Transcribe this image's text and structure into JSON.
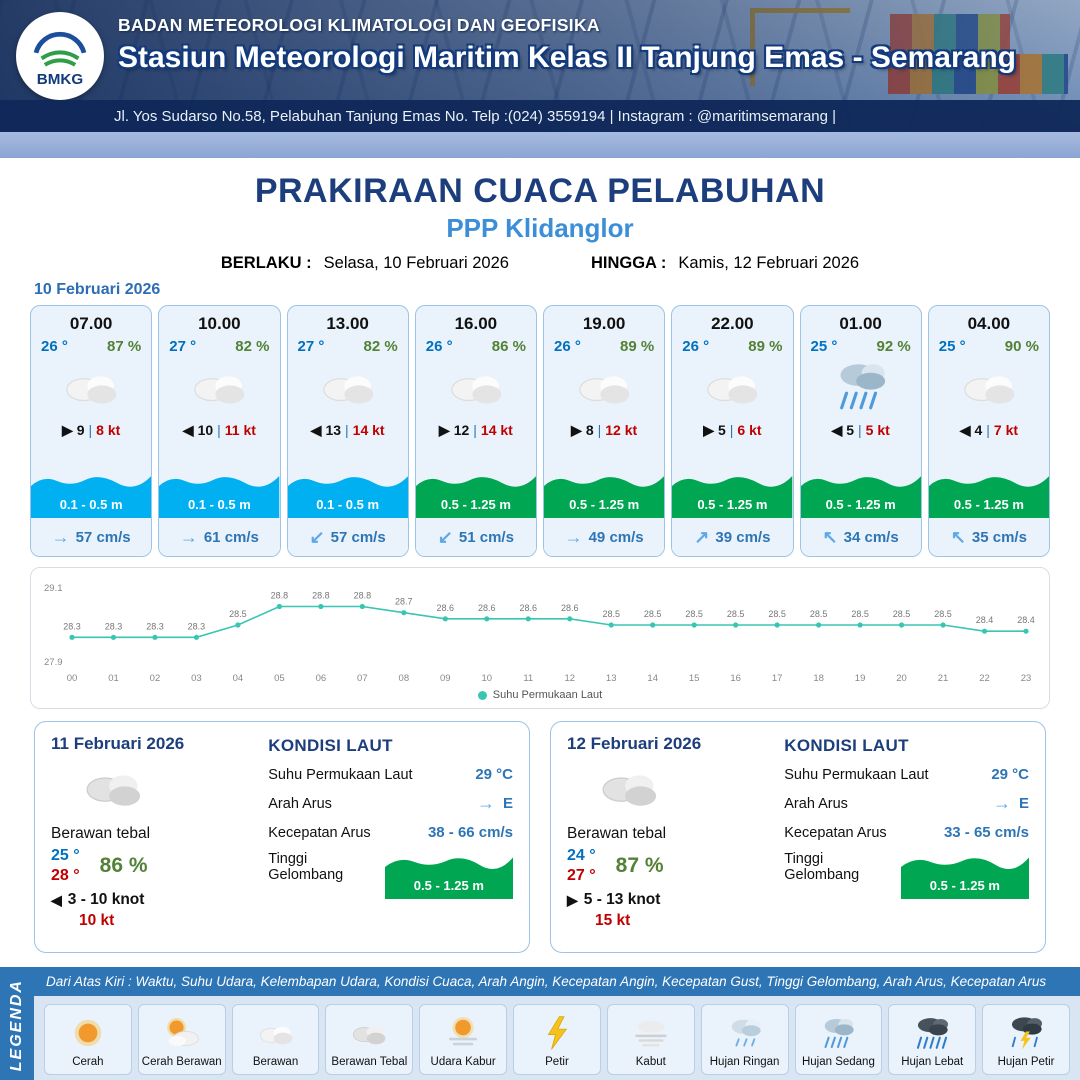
{
  "header": {
    "agency": "BADAN METEOROLOGI KLIMATOLOGI DAN GEOFISIKA",
    "station": "Stasiun Meteorologi Maritim Kelas II Tanjung Emas - Semarang",
    "address": "Jl. Yos Sudarso No.58, Pelabuhan Tanjung Emas No. Telp :(024) 3559194 | Instagram : @maritimsemarang |",
    "logo_label": "BMKG"
  },
  "title": {
    "main": "PRAKIRAAN CUACA PELABUHAN",
    "location": "PPP Klidanglor",
    "berlaku_label": "BERLAKU :",
    "berlaku_value": "Selasa, 10 Februari 2026",
    "hingga_label": "HINGGA :",
    "hingga_value": "Kamis, 12 Februari 2026"
  },
  "forecast_date": "10 Februari 2026",
  "labels": {
    "wind_sep": "|"
  },
  "forecast_cards": [
    {
      "time": "07.00",
      "temp": "26 °",
      "humidity": "87 %",
      "icon": "berawan",
      "wind_arrow": "▶",
      "wind_speed": "9",
      "gust": "8 kt",
      "wave": "0.1 - 0.5 m",
      "wave_color": "#00b0f0",
      "current_arrow": "→",
      "current": "57 cm/s"
    },
    {
      "time": "10.00",
      "temp": "27 °",
      "humidity": "82 %",
      "icon": "berawan",
      "wind_arrow": "◀",
      "wind_speed": "10",
      "gust": "11 kt",
      "wave": "0.1 - 0.5 m",
      "wave_color": "#00b0f0",
      "current_arrow": "→",
      "current": "61 cm/s"
    },
    {
      "time": "13.00",
      "temp": "27 °",
      "humidity": "82 %",
      "icon": "berawan",
      "wind_arrow": "◀",
      "wind_speed": "13",
      "gust": "14 kt",
      "wave": "0.1 - 0.5 m",
      "wave_color": "#00b0f0",
      "current_arrow": "↙",
      "current": "57 cm/s"
    },
    {
      "time": "16.00",
      "temp": "26 °",
      "humidity": "86 %",
      "icon": "berawan",
      "wind_arrow": "▶",
      "wind_speed": "12",
      "gust": "14 kt",
      "wave": "0.5 - 1.25 m",
      "wave_color": "#00a651",
      "current_arrow": "↙",
      "current": "51 cm/s"
    },
    {
      "time": "19.00",
      "temp": "26 °",
      "humidity": "89 %",
      "icon": "berawan",
      "wind_arrow": "▶",
      "wind_speed": "8",
      "gust": "12 kt",
      "wave": "0.5 - 1.25 m",
      "wave_color": "#00a651",
      "current_arrow": "→",
      "current": "49 cm/s"
    },
    {
      "time": "22.00",
      "temp": "26 °",
      "humidity": "89 %",
      "icon": "berawan",
      "wind_arrow": "▶",
      "wind_speed": "5",
      "gust": "6 kt",
      "wave": "0.5 - 1.25 m",
      "wave_color": "#00a651",
      "current_arrow": "↗",
      "current": "39 cm/s"
    },
    {
      "time": "01.00",
      "temp": "25 °",
      "humidity": "92 %",
      "icon": "hujan-sedang",
      "wind_arrow": "◀",
      "wind_speed": "5",
      "gust": "5 kt",
      "wave": "0.5 - 1.25 m",
      "wave_color": "#00a651",
      "current_arrow": "↖",
      "current": "34 cm/s"
    },
    {
      "time": "04.00",
      "temp": "25 °",
      "humidity": "90 %",
      "icon": "berawan",
      "wind_arrow": "◀",
      "wind_speed": "4",
      "gust": "7 kt",
      "wave": "0.5 - 1.25 m",
      "wave_color": "#00a651",
      "current_arrow": "↖",
      "current": "35 cm/s"
    }
  ],
  "chart_data": {
    "type": "line",
    "series_label": "Suhu Permukaan Laut",
    "x": [
      "00",
      "01",
      "02",
      "03",
      "04",
      "05",
      "06",
      "07",
      "08",
      "09",
      "10",
      "11",
      "12",
      "13",
      "14",
      "15",
      "16",
      "17",
      "18",
      "19",
      "20",
      "21",
      "22",
      "23"
    ],
    "values": [
      28.3,
      28.3,
      28.3,
      28.3,
      28.5,
      28.8,
      28.8,
      28.8,
      28.7,
      28.6,
      28.6,
      28.6,
      28.6,
      28.5,
      28.5,
      28.5,
      28.5,
      28.5,
      28.5,
      28.5,
      28.5,
      28.5,
      28.4,
      28.4
    ],
    "ylim": [
      27.9,
      29.1
    ],
    "line_color": "#38c5b2",
    "grid": false,
    "legend_position": "bottom"
  },
  "sea_labels": {
    "title": "KONDISI LAUT",
    "sst": "Suhu Permukaan Laut",
    "arah": "Arah Arus",
    "kecepatan": "Kecepatan Arus",
    "gelombang": "Tinggi Gelombang"
  },
  "daily_cards": [
    {
      "date": "11 Februari 2026",
      "icon": "berawan-tebal",
      "condition": "Berawan tebal",
      "temp_min": "25 °",
      "temp_max": "28 °",
      "humidity": "86 %",
      "wind_arrow": "◀",
      "wind_range": "3  - 10 knot",
      "gust": "10 kt",
      "sea_temp": "29 °C",
      "current_arrow": "→",
      "current_dir": "E",
      "current_speed": "38 - 66 cm/s",
      "wave": "0.5 - 1.25 m",
      "wave_color": "#00a651"
    },
    {
      "date": "12 Februari 2026",
      "icon": "berawan-tebal",
      "condition": "Berawan tebal",
      "temp_min": "24 °",
      "temp_max": "27 °",
      "humidity": "87 %",
      "wind_arrow": "▶",
      "wind_range": "5  - 13 knot",
      "gust": "15 kt",
      "sea_temp": "29 °C",
      "current_arrow": "→",
      "current_dir": "E",
      "current_speed": "33 - 65 cm/s",
      "wave": "0.5 - 1.25 m",
      "wave_color": "#00a651"
    }
  ],
  "legend": {
    "side_label": "LEGENDA",
    "note": "Dari Atas Kiri : Waktu, Suhu Udara, Kelembapan Udara, Kondisi Cuaca, Arah Angin, Kecepatan Angin, Kecepatan Gust, Tinggi Gelombang, Arah Arus, Kecepatan Arus",
    "items": [
      {
        "label": "Cerah",
        "icon": "cerah"
      },
      {
        "label": "Cerah Berawan",
        "icon": "cerah-berawan"
      },
      {
        "label": "Berawan",
        "icon": "berawan"
      },
      {
        "label": "Berawan Tebal",
        "icon": "berawan-tebal"
      },
      {
        "label": "Udara Kabur",
        "icon": "udara-kabur"
      },
      {
        "label": "Petir",
        "icon": "petir"
      },
      {
        "label": "Kabut",
        "icon": "kabut"
      },
      {
        "label": "Hujan Ringan",
        "icon": "hujan-ringan"
      },
      {
        "label": "Hujan Sedang",
        "icon": "hujan-sedang"
      },
      {
        "label": "Hujan Lebat",
        "icon": "hujan-lebat"
      },
      {
        "label": "Hujan Petir",
        "icon": "hujan-petir"
      }
    ]
  }
}
